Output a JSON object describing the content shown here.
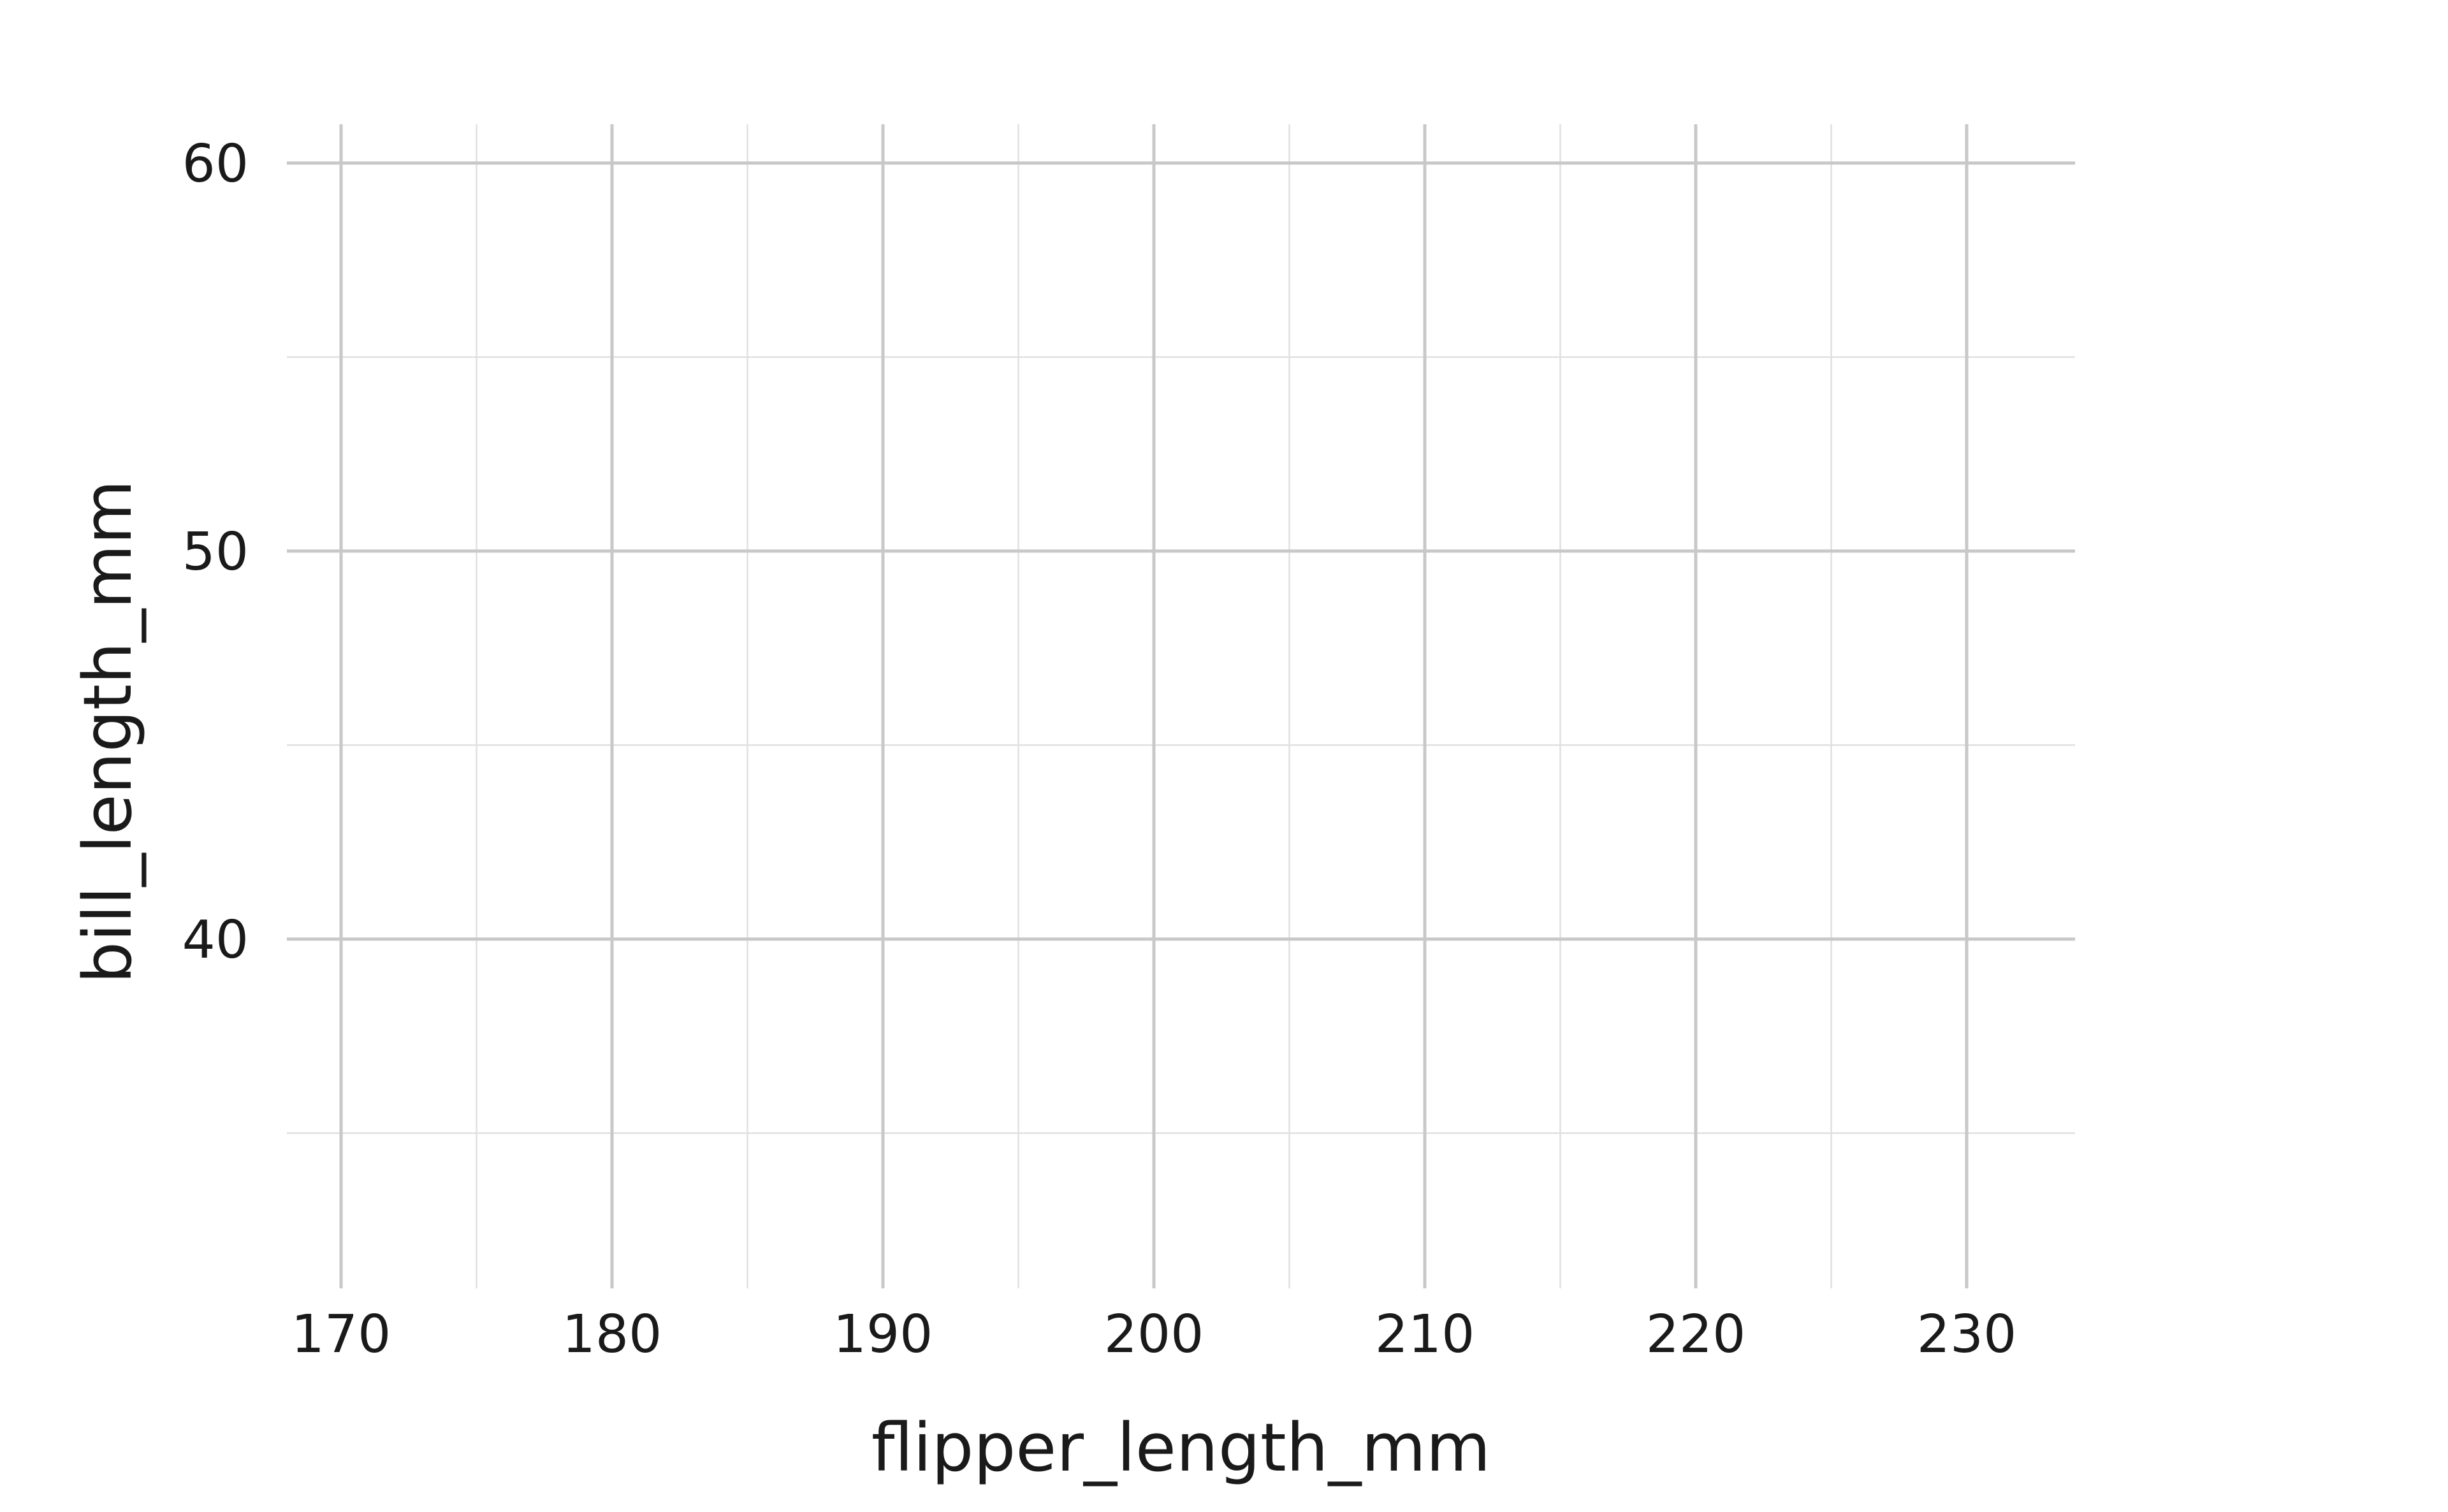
{
  "chart_data": {
    "type": "scatter",
    "title": "",
    "xlabel": "flipper_length_mm",
    "ylabel": "bill_length_mm",
    "xlim": [
      168,
      234
    ],
    "ylim": [
      31,
      61
    ],
    "x_ticks": [
      170,
      180,
      190,
      200,
      210,
      220,
      230
    ],
    "y_ticks": [
      40,
      50,
      60
    ],
    "x_minor_ticks": [
      175,
      185,
      195,
      205,
      215,
      225
    ],
    "y_minor_ticks": [
      35,
      45,
      55
    ],
    "x_tick_labels": [
      "170",
      "180",
      "190",
      "200",
      "210",
      "220",
      "230"
    ],
    "y_tick_labels": [
      "40",
      "50",
      "60"
    ],
    "grid": true,
    "legend": "none",
    "series": [],
    "colors": {
      "grid_major": "#c8c8c8",
      "grid_minor": "#e0e0e0",
      "text": "#1a1a1a",
      "background": "#ffffff"
    }
  }
}
